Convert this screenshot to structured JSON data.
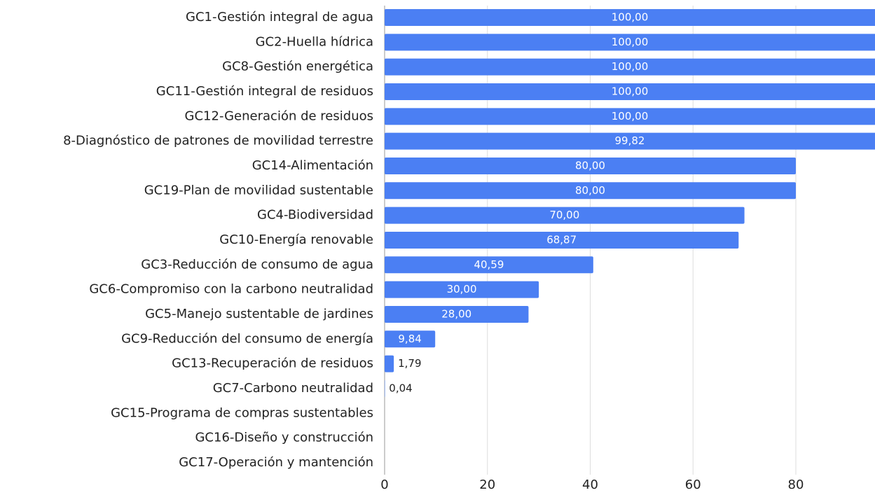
{
  "chart_data": {
    "type": "bar",
    "orientation": "horizontal",
    "categories": [
      "GC1-Gestión integral de agua",
      "GC2-Huella hídrica",
      "GC8-Gestión energética",
      "GC11-Gestión integral de residuos",
      "GC12-Generación de residuos",
      "8-Diagnóstico de patrones de movilidad terrestre",
      "GC14-Alimentación",
      "GC19-Plan de movilidad sustentable",
      "GC4-Biodiversidad",
      "GC10-Energía renovable",
      "GC3-Reducción de consumo de agua",
      "GC6-Compromiso con la carbono neutralidad",
      "GC5-Manejo sustentable de jardines",
      "GC9-Reducción del consumo de energía",
      "GC13-Recuperación de residuos",
      "GC7-Carbono neutralidad",
      "GC15-Programa de compras sustentables",
      "GC16-Diseño y construcción",
      "GC17-Operación y mantención"
    ],
    "values": [
      100,
      100,
      100,
      100,
      100,
      99.82,
      80,
      80,
      70,
      68.87,
      40.59,
      30,
      28,
      9.84,
      1.79,
      0.04,
      null,
      null,
      null
    ],
    "value_labels": [
      "100,00",
      "100,00",
      "100,00",
      "100,00",
      "100,00",
      "99,82",
      "80,00",
      "80,00",
      "70,00",
      "68,87",
      "40,59",
      "30,00",
      "28,00",
      "9,84",
      "1,79",
      "0,04",
      null,
      null,
      null
    ],
    "color": "#4b7ff3",
    "xlim": [
      0,
      95.4
    ],
    "xticks": [
      0,
      20,
      40,
      60,
      80
    ],
    "grid": true
  }
}
